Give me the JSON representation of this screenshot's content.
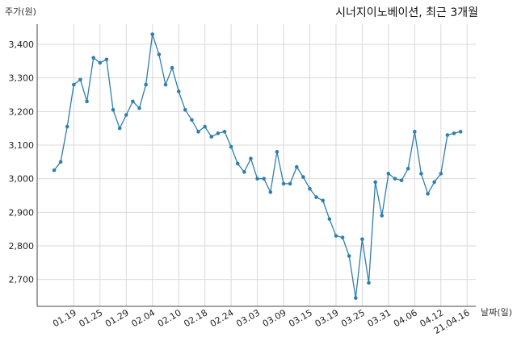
{
  "chart_data": {
    "type": "line",
    "title": "시너지이노베이션, 최근 3개월",
    "ylabel": "주가(원)",
    "xlabel": "날짜(일)",
    "ylim": [
      2620,
      3460
    ],
    "yticks": [
      2700,
      2800,
      2900,
      3000,
      3100,
      3200,
      3300,
      3400
    ],
    "ytick_labels": [
      "2,700",
      "2,800",
      "2,900",
      "3,000",
      "3,100",
      "3,200",
      "3,300",
      "3,400"
    ],
    "xtick_labels": [
      "01.19",
      "01.25",
      "01.29",
      "02.04",
      "02.10",
      "02.18",
      "02.24",
      "03.03",
      "03.09",
      "03.15",
      "03.19",
      "03.25",
      "03.31",
      "04.06",
      "04.12",
      "21.04.16"
    ],
    "xtick_positions": [
      3,
      7,
      11,
      15,
      19,
      23,
      27,
      31,
      35,
      39,
      43,
      47,
      51,
      55,
      59,
      63
    ],
    "grid": true,
    "line_color": "#2e7fb0",
    "series": [
      {
        "values": [
          3025,
          3050,
          3155,
          3280,
          3295,
          3230,
          3360,
          3345,
          3355,
          3205,
          3150,
          3190,
          3230,
          3210,
          3280,
          3430,
          3370,
          3280,
          3330,
          3260,
          3205,
          3175,
          3140,
          3155,
          3125,
          3135,
          3140,
          3095,
          3045,
          3020,
          3060,
          3000,
          3000,
          2960,
          3080,
          2985,
          2985,
          3035,
          3005,
          2970,
          2945,
          2935,
          2880,
          2830,
          2825,
          2770,
          2645,
          2820,
          2690,
          2990,
          2890,
          3015,
          3000,
          2995,
          3030,
          3140,
          3015,
          2955,
          2990,
          3015,
          3130,
          3135,
          3140
        ]
      }
    ]
  }
}
